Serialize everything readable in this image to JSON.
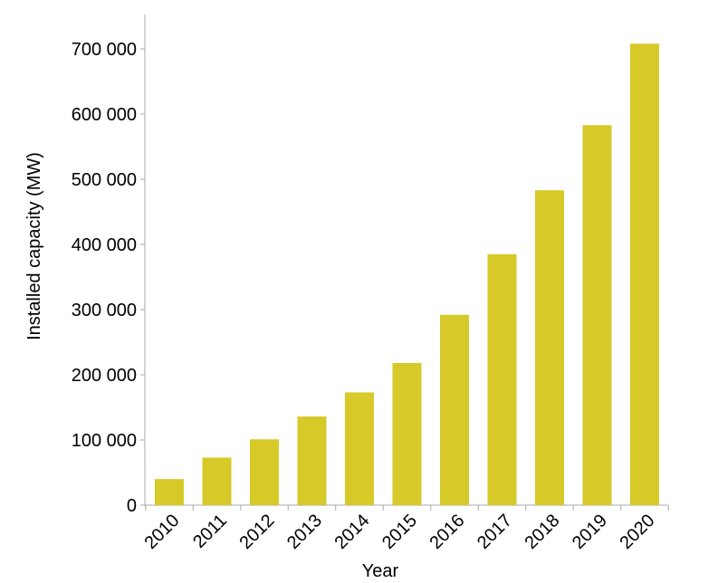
{
  "chart_data": {
    "type": "bar",
    "title": "",
    "xlabel": "Year",
    "ylabel": "Installed capacity (MW)",
    "categories": [
      "2010",
      "2011",
      "2012",
      "2013",
      "2014",
      "2015",
      "2016",
      "2017",
      "2018",
      "2019",
      "2020"
    ],
    "values": [
      40000,
      73000,
      101000,
      136000,
      173000,
      218000,
      292000,
      385000,
      483000,
      583000,
      708000
    ],
    "ylim": [
      0,
      750000
    ],
    "yticks": [
      0,
      100000,
      200000,
      300000,
      400000,
      500000,
      600000,
      700000
    ],
    "ytick_labels": [
      "0",
      "100 000",
      "200 000",
      "300 000",
      "400 000",
      "500 000",
      "600 000",
      "700 000"
    ],
    "grid": false,
    "legend": "none",
    "bar_color": "#d6c928",
    "axis_color": "#aaaaaa"
  }
}
